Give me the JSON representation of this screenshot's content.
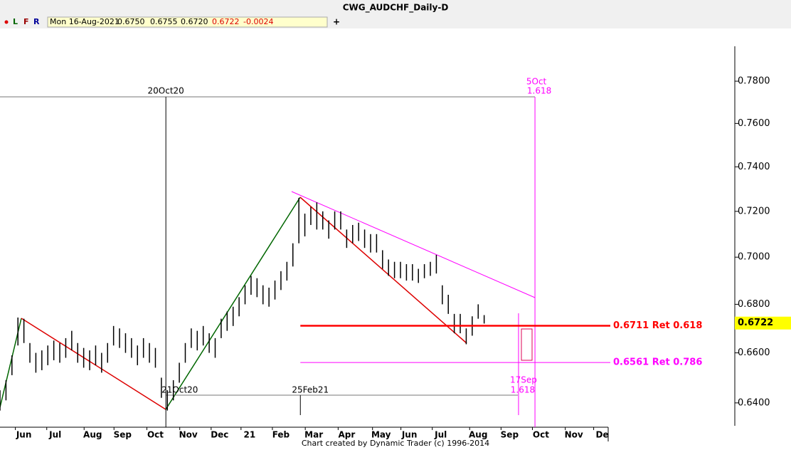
{
  "header": {
    "title": "CWG_AUDCHF_Daily-D",
    "buttons": [
      "L",
      "F",
      "R"
    ],
    "date": "Mon 16-Aug-2021",
    "open": "0.6750",
    "high": "0.6755",
    "low": "0.6720",
    "close": "0.6722",
    "change": "-0.0024",
    "plus": "+"
  },
  "footer": "Chart created by Dynamic Trader  (c) 1996-2014",
  "chart_data": {
    "type": "ohlc",
    "log": true,
    "color": "#000000",
    "xlim": [
      0,
      407
    ],
    "ylim": [
      0.6305,
      0.8057
    ],
    "yticks": [
      {
        "value": 0.78,
        "label": "0.7800"
      },
      {
        "value": 0.76,
        "label": "0.7600"
      },
      {
        "value": 0.74,
        "label": "0.7400"
      },
      {
        "value": 0.72,
        "label": "0.7200"
      },
      {
        "value": 0.7,
        "label": "0.7000"
      },
      {
        "value": 0.68,
        "label": "0.6800"
      },
      {
        "value": 0.66,
        "label": "0.6600"
      },
      {
        "value": 0.64,
        "label": "0.6400"
      }
    ],
    "xticks": [
      {
        "value": 16,
        "label": "Jun"
      },
      {
        "value": 37,
        "label": "Jul"
      },
      {
        "value": 62,
        "label": "Aug"
      },
      {
        "value": 82,
        "label": "Sep"
      },
      {
        "value": 104,
        "label": "Oct"
      },
      {
        "value": 126,
        "label": "Nov"
      },
      {
        "value": 147,
        "label": "Dec"
      },
      {
        "value": 167,
        "label": "21"
      },
      {
        "value": 188,
        "label": "Feb"
      },
      {
        "value": 210,
        "label": "Mar"
      },
      {
        "value": 232,
        "label": "Apr"
      },
      {
        "value": 255,
        "label": "May"
      },
      {
        "value": 274,
        "label": "Jun"
      },
      {
        "value": 295,
        "label": "Jul"
      },
      {
        "value": 320,
        "label": "Aug"
      },
      {
        "value": 341,
        "label": "Sep"
      },
      {
        "value": 362,
        "label": "Oct"
      },
      {
        "value": 384,
        "label": "Nov"
      },
      {
        "value": 403,
        "label": "De"
      }
    ],
    "x": [
      0,
      4,
      8,
      12,
      16,
      20,
      24,
      28,
      32,
      36,
      40,
      44,
      48,
      52,
      56,
      60,
      64,
      68,
      72,
      76,
      80,
      84,
      88,
      92,
      96,
      100,
      104,
      108,
      112,
      116,
      120,
      124,
      128,
      132,
      136,
      140,
      144,
      148,
      152,
      156,
      160,
      164,
      168,
      172,
      176,
      180,
      184,
      188,
      192,
      196,
      200,
      204,
      208,
      212,
      216,
      220,
      224,
      228,
      232,
      236,
      240,
      244,
      248,
      252,
      256,
      260,
      264,
      268,
      272,
      276,
      280,
      284,
      288,
      292,
      296,
      300,
      304,
      308,
      312,
      316,
      320,
      324
    ],
    "high": [
      0.645,
      0.649,
      0.659,
      0.6745,
      0.674,
      0.664,
      0.66,
      0.661,
      0.663,
      0.665,
      0.664,
      0.666,
      0.669,
      0.664,
      0.662,
      0.661,
      0.663,
      0.66,
      0.664,
      0.671,
      0.67,
      0.668,
      0.666,
      0.663,
      0.666,
      0.664,
      0.662,
      0.65,
      0.645,
      0.649,
      0.656,
      0.664,
      0.67,
      0.669,
      0.671,
      0.668,
      0.666,
      0.674,
      0.677,
      0.679,
      0.683,
      0.688,
      0.692,
      0.691,
      0.688,
      0.687,
      0.69,
      0.694,
      0.698,
      0.706,
      0.726,
      0.719,
      0.722,
      0.724,
      0.72,
      0.716,
      0.72,
      0.72,
      0.712,
      0.714,
      0.715,
      0.712,
      0.71,
      0.71,
      0.703,
      0.699,
      0.698,
      0.698,
      0.697,
      0.697,
      0.695,
      0.697,
      0.698,
      0.701,
      0.688,
      0.684,
      0.676,
      0.676,
      0.67,
      0.675,
      0.68,
      0.6755
    ],
    "low": [
      0.637,
      0.641,
      0.651,
      0.663,
      0.664,
      0.656,
      0.652,
      0.653,
      0.655,
      0.657,
      0.656,
      0.658,
      0.661,
      0.656,
      0.654,
      0.653,
      0.655,
      0.652,
      0.656,
      0.663,
      0.662,
      0.66,
      0.658,
      0.655,
      0.658,
      0.656,
      0.654,
      0.642,
      0.637,
      0.641,
      0.648,
      0.656,
      0.662,
      0.661,
      0.663,
      0.66,
      0.658,
      0.666,
      0.669,
      0.671,
      0.675,
      0.68,
      0.684,
      0.683,
      0.68,
      0.679,
      0.682,
      0.686,
      0.69,
      0.696,
      0.706,
      0.709,
      0.714,
      0.712,
      0.712,
      0.708,
      0.712,
      0.712,
      0.704,
      0.706,
      0.707,
      0.704,
      0.702,
      0.702,
      0.695,
      0.692,
      0.691,
      0.691,
      0.69,
      0.69,
      0.689,
      0.691,
      0.692,
      0.693,
      0.68,
      0.676,
      0.668,
      0.668,
      0.6635,
      0.667,
      0.674,
      0.672
    ],
    "levels": [
      {
        "value": 0.6711,
        "label": "0.6711 Ret 0.618",
        "color": "#ff0000"
      },
      {
        "value": 0.6561,
        "label": "0.6561 Ret 0.786",
        "color": "#ff00ff"
      }
    ],
    "last_price": {
      "value": 0.6722,
      "label": "0.6722"
    },
    "annotations": [
      {
        "label": "20Oct20",
        "x": 111,
        "color": "#000000"
      },
      {
        "label": "5Oct",
        "sublabel": "1.618",
        "x": 358,
        "color": "#ff00ff"
      },
      {
        "label": "21Oct20",
        "x": 117,
        "color": "#000000"
      },
      {
        "label": "25Feb21",
        "x": 201,
        "color": "#000000"
      },
      {
        "label": "17Sep",
        "sublabel": "1.618",
        "x": 347,
        "color": "#ff00ff"
      }
    ]
  }
}
